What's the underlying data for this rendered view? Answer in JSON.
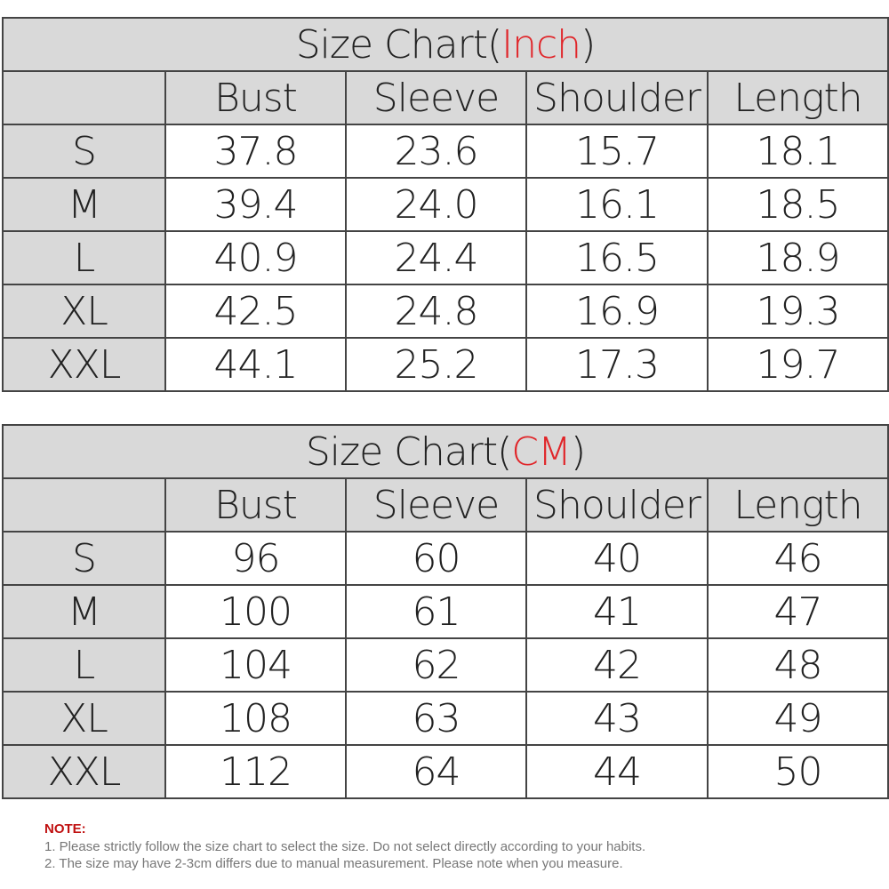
{
  "tables": [
    {
      "title_prefix": "Size Chart(",
      "title_unit": "Inch",
      "title_suffix": ")",
      "headers": [
        "",
        "Bust",
        "Sleeve",
        "Shoulder",
        "Length"
      ],
      "rows": [
        [
          "S",
          "37.8",
          "23.6",
          "15.7",
          "18.1"
        ],
        [
          "M",
          "39.4",
          "24.0",
          "16.1",
          "18.5"
        ],
        [
          "L",
          "40.9",
          "24.4",
          "16.5",
          "18.9"
        ],
        [
          "XL",
          "42.5",
          "24.8",
          "16.9",
          "19.3"
        ],
        [
          "XXL",
          "44.1",
          "25.2",
          "17.3",
          "19.7"
        ]
      ]
    },
    {
      "title_prefix": "Size Chart(",
      "title_unit": "CM",
      "title_suffix": ")",
      "headers": [
        "",
        "Bust",
        "Sleeve",
        "Shoulder",
        "Length"
      ],
      "rows": [
        [
          "S",
          "96",
          "60",
          "40",
          "46"
        ],
        [
          "M",
          "100",
          "61",
          "41",
          "47"
        ],
        [
          "L",
          "104",
          "62",
          "42",
          "48"
        ],
        [
          "XL",
          "108",
          "63",
          "43",
          "49"
        ],
        [
          "XXL",
          "112",
          "64",
          "44",
          "50"
        ]
      ]
    }
  ],
  "note": {
    "title": "NOTE:",
    "lines": [
      "1. Please strictly follow the size chart  to select the size. Do not select directly according to your habits.",
      "2. The size may have 2-3cm differs due to manual measurement. Please note when you measure."
    ]
  },
  "colors": {
    "header_bg": "#d9d9d9",
    "unit_accent": "#e0262a",
    "note_title": "#c01010"
  }
}
